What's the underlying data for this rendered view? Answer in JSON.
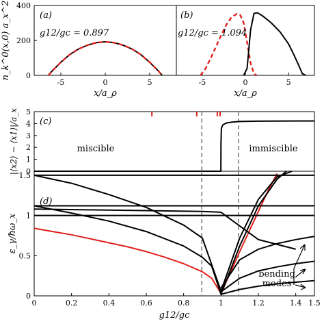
{
  "chart_data": [
    {
      "panel": "a",
      "type": "line",
      "panel_label": "(a)",
      "annotation": "g12/gc = 0.897",
      "ylabel": "n_k^0(x,0) a_x^2",
      "xlabel": "x/a_ρ",
      "xlim": [
        -8,
        8
      ],
      "ylim": [
        0,
        400
      ],
      "xticks": [
        -5,
        0,
        5
      ],
      "yticks": [
        0,
        200,
        400
      ],
      "series": [
        {
          "style": "solid-black",
          "x": [
            -6.4,
            -6,
            -5,
            -4,
            -3,
            -2,
            -1,
            0,
            1,
            2,
            3,
            4,
            5,
            6,
            6.4
          ],
          "y": [
            0,
            24,
            75,
            119,
            151,
            173,
            187,
            192,
            187,
            173,
            151,
            119,
            75,
            24,
            0
          ]
        },
        {
          "style": "dashed-red",
          "x": [
            -6.4,
            -6,
            -5,
            -4,
            -3,
            -2,
            -1,
            0,
            1,
            2,
            3,
            4,
            5,
            6,
            6.4
          ],
          "y": [
            0,
            24,
            75,
            119,
            151,
            173,
            187,
            192,
            187,
            173,
            151,
            119,
            75,
            24,
            0
          ]
        }
      ]
    },
    {
      "panel": "b",
      "type": "line",
      "panel_label": "(b)",
      "annotation": "g12/gc = 1.094",
      "xlabel": "x/a_ρ",
      "xlim": [
        -8,
        8
      ],
      "ylim": [
        0,
        400
      ],
      "xticks": [
        -5,
        0,
        5
      ],
      "series": [
        {
          "style": "dashed-red",
          "x": [
            -5.2,
            -4.6,
            -4,
            -3.4,
            -2.8,
            -2.2,
            -1.6,
            -1.0,
            -0.6,
            -0.2,
            0.2,
            0.6,
            1.0,
            1.3
          ],
          "y": [
            0,
            40,
            100,
            165,
            230,
            290,
            333,
            352,
            345,
            300,
            190,
            70,
            10,
            0
          ]
        },
        {
          "style": "solid-black",
          "x": [
            -0.2,
            0.2,
            0.6,
            1.0,
            1.4,
            2,
            3,
            4,
            5,
            5.6,
            6.2,
            6.6,
            7.0
          ],
          "y": [
            0,
            40,
            260,
            355,
            358,
            340,
            300,
            250,
            180,
            120,
            55,
            10,
            0
          ]
        }
      ]
    },
    {
      "panel": "c",
      "type": "line",
      "panel_label": "(c)",
      "ylabel": "|⟨x2⟩ − ⟨x1⟩|/a_x",
      "xlim": [
        0,
        1.5
      ],
      "ylim": [
        0,
        5
      ],
      "yticks": [
        0,
        1,
        2,
        3,
        4,
        5
      ],
      "regions": [
        "miscible",
        "immiscible"
      ],
      "dashed_lines_x": [
        0.897,
        1.094
      ],
      "red_ticks_x": [
        0.63,
        0.87,
        0.98,
        0.995
      ],
      "series": [
        {
          "style": "solid-black",
          "x": [
            0,
            0.999,
            1.0,
            1.002,
            1.01,
            1.03,
            1.06,
            1.1,
            1.2,
            1.3,
            1.4,
            1.5
          ],
          "y": [
            0,
            0,
            2.3,
            3.6,
            3.9,
            4.05,
            4.12,
            4.17,
            4.2,
            4.21,
            4.22,
            4.22
          ]
        }
      ]
    },
    {
      "panel": "d",
      "type": "line",
      "panel_label": "(d)",
      "ylabel": "ε_γ/ħω_x",
      "xlabel": "g12/gc",
      "xlim": [
        0,
        1.5
      ],
      "ylim": [
        0,
        1.55
      ],
      "xticks": [
        0,
        0.2,
        0.4,
        0.6,
        0.8,
        1,
        1.2,
        1.4,
        1.5
      ],
      "yticks": [
        0,
        0.5,
        1,
        1.5
      ],
      "annotation": "bending modes",
      "dashed_lines_x": [
        0.897,
        1.094
      ],
      "series": [
        {
          "style": "solid-red",
          "x": [
            0,
            0.1,
            0.2,
            0.3,
            0.4,
            0.5,
            0.6,
            0.7,
            0.8,
            0.9,
            0.95,
            1.0,
            1.1,
            1.2,
            1.25,
            1.3
          ],
          "y": [
            0.84,
            0.8,
            0.76,
            0.71,
            0.66,
            0.61,
            0.55,
            0.48,
            0.4,
            0.3,
            0.22,
            0.03,
            0.55,
            1.05,
            1.3,
            1.52
          ]
        },
        {
          "style": "solid-black",
          "x": [
            0,
            0.2,
            0.4,
            0.6,
            0.8,
            0.9,
            0.95,
            1.0,
            1.1,
            1.2,
            1.3,
            1.35
          ],
          "y": [
            1.12,
            1.03,
            0.93,
            0.8,
            0.62,
            0.48,
            0.37,
            0.02,
            0.62,
            1.12,
            1.45,
            1.55
          ]
        },
        {
          "style": "solid-black",
          "x": [
            0,
            0.2,
            0.4,
            0.6,
            0.8,
            0.9,
            1.0,
            1.1,
            1.2,
            1.3,
            1.38
          ],
          "y": [
            1.5,
            1.4,
            1.26,
            1.1,
            0.88,
            0.72,
            0.06,
            0.72,
            1.2,
            1.48,
            1.55
          ]
        },
        {
          "style": "solid-black",
          "x": [
            0,
            0.3,
            0.6,
            0.9,
            1.0,
            1.2,
            1.4
          ],
          "y": [
            1.08,
            1.07,
            1.06,
            1.05,
            1.04,
            0.7,
            0.58
          ]
        },
        {
          "style": "solid-black",
          "x": [
            0,
            0.5,
            1.0,
            1.5
          ],
          "y": [
            1.0,
            1.0,
            1.0,
            1.0
          ]
        },
        {
          "style": "solid-black",
          "x": [
            0,
            0.5,
            1.0,
            1.5
          ],
          "y": [
            1.5,
            1.5,
            1.5,
            1.5
          ]
        },
        {
          "style": "solid-black",
          "x": [
            0,
            0.5,
            1.0,
            1.5
          ],
          "y": [
            1.12,
            1.12,
            1.12,
            1.12
          ]
        },
        {
          "style": "solid-black",
          "x": [
            1.0,
            1.1,
            1.2,
            1.3,
            1.4,
            1.5
          ],
          "y": [
            0.02,
            0.08,
            0.12,
            0.15,
            0.17,
            0.19
          ]
        },
        {
          "style": "solid-black",
          "x": [
            1.0,
            1.1,
            1.2,
            1.3,
            1.4,
            1.5
          ],
          "y": [
            0.05,
            0.22,
            0.31,
            0.36,
            0.4,
            0.43
          ]
        },
        {
          "style": "solid-black",
          "x": [
            1.0,
            1.1,
            1.2,
            1.3,
            1.4,
            1.5
          ],
          "y": [
            0.1,
            0.45,
            0.58,
            0.65,
            0.7,
            0.74
          ]
        }
      ]
    }
  ]
}
